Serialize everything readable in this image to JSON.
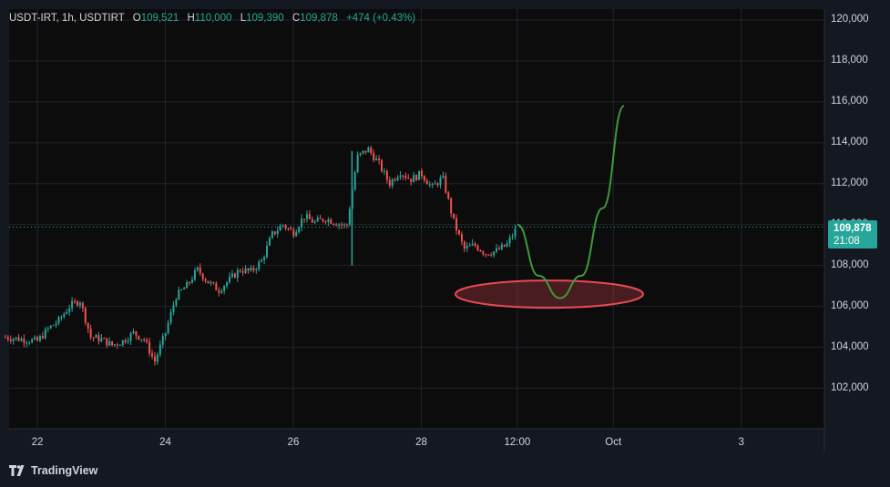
{
  "legend": {
    "symbol": "USDT-IRT, 1h, USDTIRT",
    "open_label": "O",
    "open": "109,521",
    "high_label": "H",
    "high": "110,000",
    "low_label": "L",
    "low": "109,390",
    "close_label": "C",
    "close": "109,878",
    "change": "+474 (+0.43%)"
  },
  "price_tag": {
    "price": "109,878",
    "countdown": "21:08"
  },
  "footer": {
    "brand": "TradingView"
  },
  "colors": {
    "up": "#26a69a",
    "down": "#ef5350",
    "projection": "#3d9a3a",
    "ellipse": "#e84a55"
  },
  "chart_data": {
    "type": "candlestick",
    "title": "USDT-IRT, 1h, USDTIRT",
    "xlabel": "",
    "ylabel": "",
    "ylim": [
      100800,
      120700
    ],
    "y_ticks": [
      "120,000",
      "118,000",
      "116,000",
      "114,000",
      "112,000",
      "110,000",
      "108,000",
      "106,000",
      "104,000",
      "102,000"
    ],
    "x_ticks": [
      "22",
      "24",
      "26",
      "28",
      "12:00",
      "Oct",
      "3"
    ],
    "last_price": 109878,
    "grid": true,
    "series": [
      {
        "name": "",
        "kind": "price",
        "points": [
          [
            "Sep 21 12:00",
            104500
          ],
          [
            "Sep 22 00:00",
            104300
          ],
          [
            "Sep 22 04:00",
            104900
          ],
          [
            "Sep 22 08:00",
            105300
          ],
          [
            "Sep 22 12:00",
            106000
          ],
          [
            "Sep 22 16:00",
            106300
          ],
          [
            "Sep 22 20:00",
            104500
          ],
          [
            "Sep 23 00:00",
            104400
          ],
          [
            "Sep 23 04:00",
            104100
          ],
          [
            "Sep 23 08:00",
            104300
          ],
          [
            "Sep 23 12:00",
            104700
          ],
          [
            "Sep 23 16:00",
            104400
          ],
          [
            "Sep 23 20:00",
            103300
          ],
          [
            "Sep 24 00:00",
            104700
          ],
          [
            "Sep 24 04:00",
            106500
          ],
          [
            "Sep 24 08:00",
            107000
          ],
          [
            "Sep 24 12:00",
            107800
          ],
          [
            "Sep 24 16:00",
            107200
          ],
          [
            "Sep 24 20:00",
            106800
          ],
          [
            "Sep 25 00:00",
            107300
          ],
          [
            "Sep 25 04:00",
            107800
          ],
          [
            "Sep 25 08:00",
            107700
          ],
          [
            "Sep 25 12:00",
            108200
          ],
          [
            "Sep 25 16:00",
            109500
          ],
          [
            "Sep 25 20:00",
            110000
          ],
          [
            "Sep 26 00:00",
            109600
          ],
          [
            "Sep 26 04:00",
            110400
          ],
          [
            "Sep 26 08:00",
            110100
          ],
          [
            "Sep 26 12:00",
            110300
          ],
          [
            "Sep 26 16:00",
            110100
          ],
          [
            "Sep 26 20:00",
            109900
          ],
          [
            "Sep 27 00:00",
            113300
          ],
          [
            "Sep 27 04:00",
            113700
          ],
          [
            "Sep 27 08:00",
            113000
          ],
          [
            "Sep 27 12:00",
            112000
          ],
          [
            "Sep 27 16:00",
            112600
          ],
          [
            "Sep 27 20:00",
            112200
          ],
          [
            "Sep 28 00:00",
            112500
          ],
          [
            "Sep 28 04:00",
            111800
          ],
          [
            "Sep 28 08:00",
            112300
          ],
          [
            "Sep 28 12:00",
            110200
          ],
          [
            "Sep 28 16:00",
            108800
          ],
          [
            "Sep 28 20:00",
            109000
          ],
          [
            "Sep 29 00:00",
            108600
          ],
          [
            "Sep 29 04:00",
            108700
          ],
          [
            "Sep 29 08:00",
            109000
          ],
          [
            "Sep 29 12:00",
            109878
          ]
        ]
      },
      {
        "name": "",
        "kind": "projection",
        "points": [
          [
            "Sep 29 12:00",
            110000
          ],
          [
            "Sep 29 20:00",
            107500
          ],
          [
            "Sep 30 04:00",
            106400
          ],
          [
            "Sep 30 12:00",
            107500
          ],
          [
            "Sep 30 20:00",
            110800
          ],
          [
            "Oct 1 04:00",
            115800
          ]
        ]
      }
    ],
    "annotations": [
      {
        "type": "ellipse",
        "center": [
          "Sep 30 00:00",
          106600
        ]
      }
    ]
  }
}
